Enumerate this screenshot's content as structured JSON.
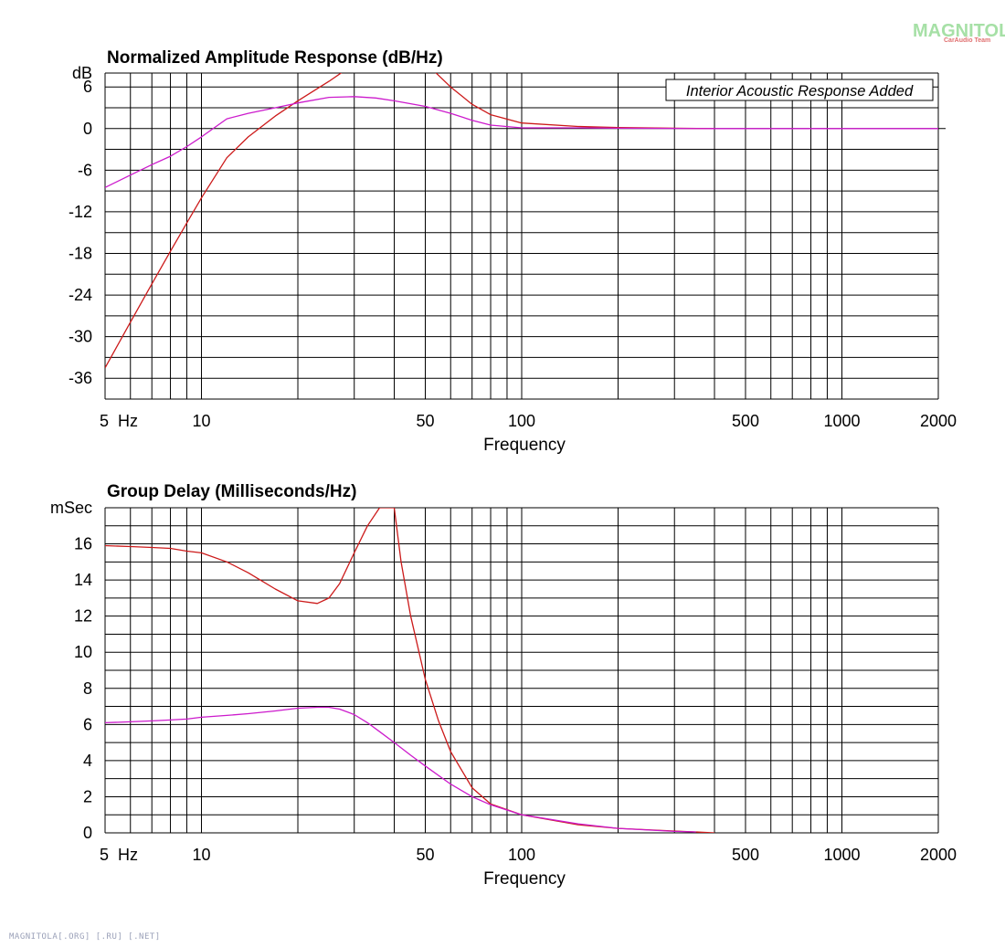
{
  "watermark": {
    "title": "MAGNITOLA",
    "subtitle": "CarAudio Team",
    "footer": "MAGNITOLA[.ORG] [.RU] [.NET]"
  },
  "chart_data": [
    {
      "type": "line",
      "title": "Normalized Amplitude Response (dB/Hz)",
      "xlabel": "Frequency",
      "ylabel": "dB",
      "xscale": "log",
      "xlim": [
        5,
        2000
      ],
      "ylim": [
        -39,
        8
      ],
      "grid": true,
      "x_ticks": [
        {
          "value": 5,
          "label": "5  Hz"
        },
        {
          "value": 10,
          "label": "10"
        },
        {
          "value": 50,
          "label": "50"
        },
        {
          "value": 100,
          "label": "100"
        },
        {
          "value": 500,
          "label": "500"
        },
        {
          "value": 1000,
          "label": "1000"
        },
        {
          "value": 2000,
          "label": "2000"
        }
      ],
      "y_ticks": [
        {
          "value": 8,
          "label": "dB"
        },
        {
          "value": 6,
          "label": "6"
        },
        {
          "value": 0,
          "label": "0"
        },
        {
          "value": -6,
          "label": "-6"
        },
        {
          "value": -12,
          "label": "-12"
        },
        {
          "value": -18,
          "label": "-18"
        },
        {
          "value": -24,
          "label": "-24"
        },
        {
          "value": -30,
          "label": "-30"
        },
        {
          "value": -36,
          "label": "-36"
        }
      ],
      "annotation": "Interior Acoustic Response Added",
      "series": [
        {
          "color": "#cc1a1a",
          "x": [
            5,
            6,
            7,
            8,
            9,
            10,
            12,
            14,
            17,
            20,
            25,
            30,
            35,
            38,
            42,
            50,
            60,
            70,
            80,
            100,
            150,
            200,
            300,
            400
          ],
          "y": [
            -34.5,
            -27.9,
            -22.4,
            -17.7,
            -13.6,
            -10.0,
            -4.2,
            -1.2,
            1.8,
            4.0,
            6.8,
            9.3,
            11.0,
            12.0,
            11.8,
            9.5,
            6.0,
            3.5,
            2.0,
            0.8,
            0.3,
            0.15,
            0.05,
            0
          ]
        },
        {
          "color": "#cc1acc",
          "x": [
            5,
            6,
            7,
            8,
            9,
            10,
            12,
            14,
            17,
            20,
            25,
            30,
            35,
            40,
            50,
            60,
            70,
            80,
            100,
            150,
            200,
            400,
            2000
          ],
          "y": [
            -8.5,
            -6.7,
            -5.2,
            -4.0,
            -2.6,
            -1.2,
            1.4,
            2.2,
            3.0,
            3.7,
            4.5,
            4.6,
            4.4,
            4.0,
            3.2,
            2.2,
            1.2,
            0.5,
            0.1,
            0.1,
            0.05,
            0,
            0
          ]
        }
      ]
    },
    {
      "type": "line",
      "title": "Group Delay (Milliseconds/Hz)",
      "xlabel": "Frequency",
      "ylabel": "mSec",
      "xscale": "log",
      "xlim": [
        5,
        2000
      ],
      "ylim": [
        0,
        18
      ],
      "grid": true,
      "x_ticks": [
        {
          "value": 5,
          "label": "5  Hz"
        },
        {
          "value": 10,
          "label": "10"
        },
        {
          "value": 50,
          "label": "50"
        },
        {
          "value": 100,
          "label": "100"
        },
        {
          "value": 500,
          "label": "500"
        },
        {
          "value": 1000,
          "label": "1000"
        },
        {
          "value": 2000,
          "label": "2000"
        }
      ],
      "y_ticks": [
        {
          "value": 18,
          "label": "mSec"
        },
        {
          "value": 16,
          "label": "16"
        },
        {
          "value": 14,
          "label": "14"
        },
        {
          "value": 12,
          "label": "12"
        },
        {
          "value": 10,
          "label": "10"
        },
        {
          "value": 8,
          "label": "8"
        },
        {
          "value": 6,
          "label": "6"
        },
        {
          "value": 4,
          "label": "4"
        },
        {
          "value": 2,
          "label": "2"
        },
        {
          "value": 0,
          "label": "0"
        }
      ],
      "series": [
        {
          "color": "#cc1a1a",
          "x": [
            5,
            6,
            7,
            8,
            9,
            10,
            12,
            14,
            17,
            20,
            23,
            25,
            27,
            30,
            33,
            36,
            38,
            40,
            42,
            45,
            50,
            55,
            60,
            70,
            80,
            100,
            150,
            200,
            300,
            400
          ],
          "y": [
            15.9,
            15.85,
            15.8,
            15.75,
            15.6,
            15.5,
            15.0,
            14.4,
            13.5,
            12.85,
            12.7,
            13.0,
            13.8,
            15.5,
            17.0,
            18.0,
            18.0,
            18.0,
            15.0,
            12.0,
            8.5,
            6.2,
            4.5,
            2.5,
            1.6,
            1.0,
            0.45,
            0.25,
            0.1,
            0
          ]
        },
        {
          "color": "#cc1acc",
          "x": [
            5,
            6,
            7,
            8,
            9,
            10,
            12,
            14,
            17,
            20,
            23,
            25,
            27,
            30,
            33,
            36,
            40,
            45,
            50,
            60,
            70,
            80,
            100,
            150,
            200,
            300,
            350
          ],
          "y": [
            6.1,
            6.15,
            6.2,
            6.25,
            6.3,
            6.4,
            6.5,
            6.6,
            6.75,
            6.9,
            6.95,
            6.95,
            6.85,
            6.55,
            6.1,
            5.6,
            5.0,
            4.3,
            3.7,
            2.7,
            2.0,
            1.55,
            1.0,
            0.5,
            0.25,
            0.08,
            0.05
          ]
        }
      ]
    }
  ]
}
